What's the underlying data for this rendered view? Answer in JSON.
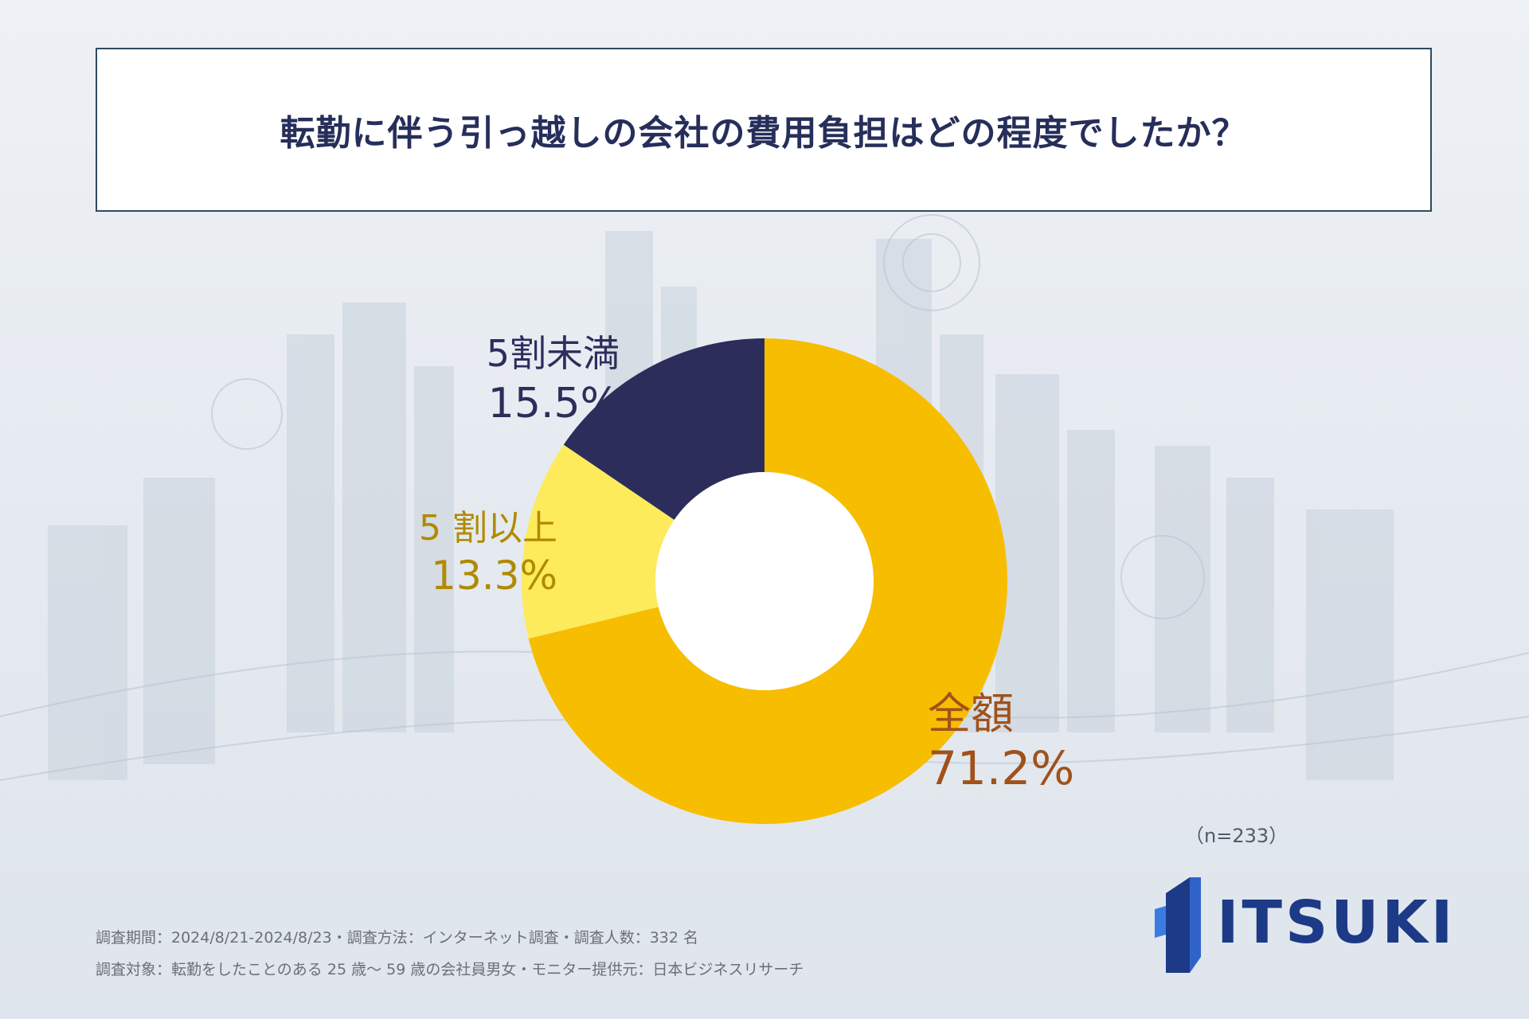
{
  "title": "転勤に伴う引っ越しの会社の費用負担はどの程度でしたか？",
  "sample_size": "（n=233）",
  "notes": {
    "line1": "調査期間：2024/8/21-2024/8/23・調査方法：インターネット調査・調査人数：332 名",
    "line2": "調査対象：転勤をしたことのある 25 歳～ 59 歳の会社員男女・モニター提供元：日本ビジネスリサーチ"
  },
  "logo": {
    "text": "ITSUKI"
  },
  "colors": {
    "title_text": "#262e5a",
    "slice_full": "#f7bd00",
    "slice_over_half": "#fdeb5c",
    "slice_under_half": "#2c2d5b",
    "label_full": "#a0521a",
    "label_over_half": "#b08a00",
    "label_under_half": "#2c2d5b"
  },
  "chart_data": {
    "type": "pie",
    "donut": true,
    "start": "12 o'clock",
    "direction": "clockwise",
    "slices": [
      {
        "label": "全額",
        "value": 71.2,
        "display": "71.2%",
        "color": "#f7bd00",
        "text_color": "#a0521a"
      },
      {
        "label": "5 割以上",
        "value": 13.3,
        "display": "13.3%",
        "color": "#fdeb5c",
        "text_color": "#b08a00"
      },
      {
        "label": "5割未満",
        "value": 15.5,
        "display": "15.5%",
        "color": "#2c2d5b",
        "text_color": "#2c2d5b"
      }
    ]
  }
}
